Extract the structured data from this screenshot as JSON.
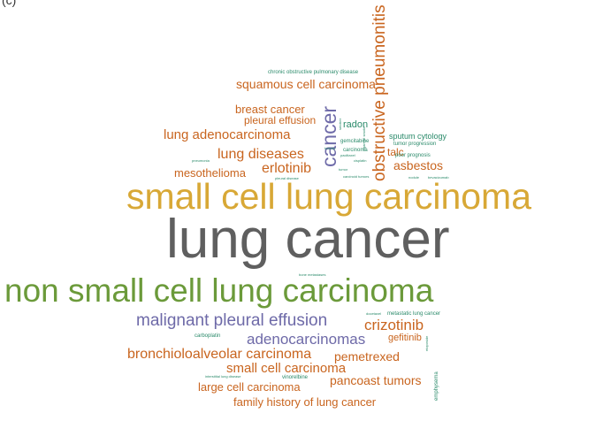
{
  "panel_label": "(c)",
  "words": [
    {
      "text": "lung cancer",
      "color": "#5f5f5f"
    },
    {
      "text": "small cell lung carcinoma",
      "color": "#d8a836"
    },
    {
      "text": "non small cell lung carcinoma",
      "color": "#6b9a3a"
    },
    {
      "text": "obstructive pneumonitis",
      "color": "#c9651f"
    },
    {
      "text": "cancer",
      "color": "#6e6aa8"
    },
    {
      "text": "squamous cell carcinoma",
      "color": "#c9651f"
    },
    {
      "text": "chronic obstructive pulmonary disease",
      "color": "#2a8a6a"
    },
    {
      "text": "breast cancer",
      "color": "#c9651f"
    },
    {
      "text": "pleural effusion",
      "color": "#c9651f"
    },
    {
      "text": "lung adenocarcinoma",
      "color": "#c9651f"
    },
    {
      "text": "lung diseases",
      "color": "#c9651f"
    },
    {
      "text": "erlotinib",
      "color": "#c9651f"
    },
    {
      "text": "mesothelioma",
      "color": "#c9651f"
    },
    {
      "text": "asbestos",
      "color": "#c9651f"
    },
    {
      "text": "talc",
      "color": "#c9651f"
    },
    {
      "text": "radon",
      "color": "#2a8a6a"
    },
    {
      "text": "sputum cytology",
      "color": "#2a8a6a"
    },
    {
      "text": "tumor progression",
      "color": "#2a8a6a"
    },
    {
      "text": "gemcitabine",
      "color": "#2a8a6a"
    },
    {
      "text": "carcinoma",
      "color": "#2a8a6a"
    },
    {
      "text": "poor prognosis",
      "color": "#2a8a6a"
    },
    {
      "text": "malignant pleural effusion",
      "color": "#6e6aa8"
    },
    {
      "text": "adenocarcinomas",
      "color": "#6e6aa8"
    },
    {
      "text": "crizotinib",
      "color": "#c9651f"
    },
    {
      "text": "gefitinib",
      "color": "#c9651f"
    },
    {
      "text": "metastatic lung cancer",
      "color": "#2a8a6a"
    },
    {
      "text": "bronchioloalveolar carcinoma",
      "color": "#c9651f"
    },
    {
      "text": "pemetrexed",
      "color": "#c9651f"
    },
    {
      "text": "small cell carcinoma",
      "color": "#c9651f"
    },
    {
      "text": "pancoast tumors",
      "color": "#c9651f"
    },
    {
      "text": "large cell carcinoma",
      "color": "#c9651f"
    },
    {
      "text": "family history of lung cancer",
      "color": "#c9651f"
    },
    {
      "text": "carboplatin",
      "color": "#2a8a6a"
    },
    {
      "text": "emphysema",
      "color": "#2a8a6a"
    },
    {
      "text": "vinorelbine",
      "color": "#2a8a6a"
    },
    {
      "text": "bone metastases",
      "color": "#2a8a6a"
    },
    {
      "text": "toxicity",
      "color": "#2a8a6a"
    },
    {
      "text": "paclitaxel",
      "color": "#2a8a6a"
    },
    {
      "text": "cisplatin",
      "color": "#2a8a6a"
    },
    {
      "text": "bevacizumab",
      "color": "#2a8a6a"
    },
    {
      "text": "nodule",
      "color": "#2a8a6a"
    },
    {
      "text": "carcinoid tumors",
      "color": "#2a8a6a"
    },
    {
      "text": "tumor",
      "color": "#2a8a6a"
    },
    {
      "text": "interstitial lung disease",
      "color": "#2a8a6a"
    },
    {
      "text": "docetaxel",
      "color": "#2a8a6a"
    },
    {
      "text": "etoposide",
      "color": "#2a8a6a"
    },
    {
      "text": "cigarette smoke",
      "color": "#2a8a6a"
    },
    {
      "text": "smoker",
      "color": "#2a8a6a"
    },
    {
      "text": "pneumonia",
      "color": "#2a8a6a"
    },
    {
      "text": "pleural disease",
      "color": "#2a8a6a"
    }
  ]
}
